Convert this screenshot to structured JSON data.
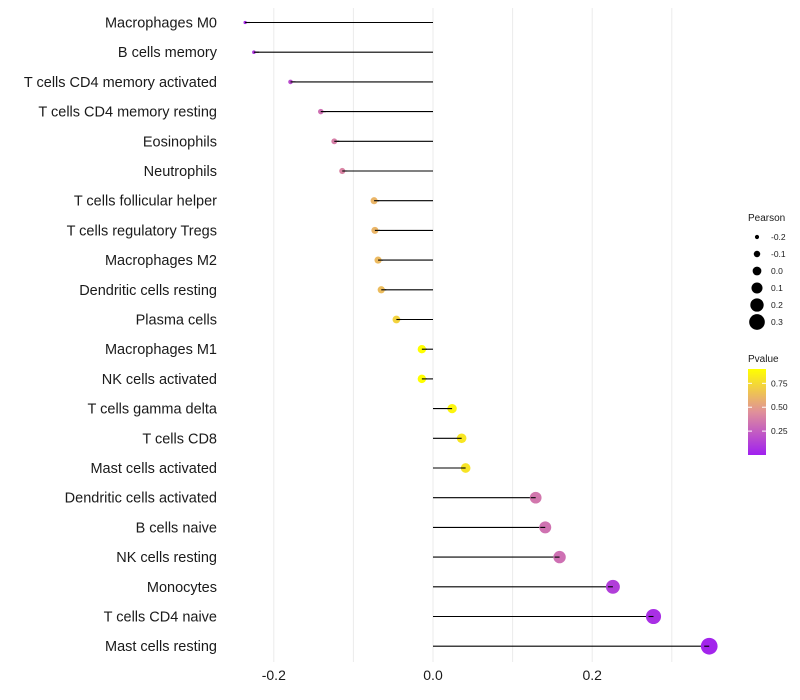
{
  "chart_data": {
    "type": "lollipop",
    "categories": [
      "Macrophages M0",
      "B cells memory",
      "T cells CD4 memory activated",
      "T cells CD4 memory resting",
      "Eosinophils",
      "Neutrophils",
      "T cells follicular helper",
      "T cells regulatory  Tregs ",
      "Macrophages M2",
      "Dendritic cells resting",
      "Plasma cells",
      "Macrophages M1",
      "NK cells activated",
      "T cells gamma delta",
      "T cells CD8",
      "Mast cells activated",
      "Dendritic cells activated",
      "B cells naive",
      "NK cells resting",
      "Monocytes",
      "T cells CD4 naive",
      "Mast cells resting"
    ],
    "pearson": [
      -0.236,
      -0.225,
      -0.179,
      -0.141,
      -0.124,
      -0.114,
      -0.074,
      -0.073,
      -0.069,
      -0.065,
      -0.046,
      -0.014,
      -0.014,
      0.024,
      0.036,
      0.041,
      0.129,
      0.141,
      0.159,
      0.226,
      0.277,
      0.347
    ],
    "pvalue": [
      0.05,
      0.1,
      0.18,
      0.32,
      0.38,
      0.4,
      0.6,
      0.6,
      0.62,
      0.63,
      0.72,
      0.9,
      0.9,
      0.86,
      0.8,
      0.79,
      0.35,
      0.33,
      0.32,
      0.12,
      0.06,
      0.02
    ],
    "xlim": [
      -0.235,
      0.35
    ],
    "xticks": [
      -0.2,
      0.0,
      0.2
    ],
    "xtick_labels": [
      "-0.2",
      "0.0",
      "0.2"
    ],
    "title": "",
    "xlabel": "",
    "ylabel": "",
    "grid": true,
    "legend": {
      "size": {
        "title": "Pearson",
        "values": [
          -0.2,
          -0.1,
          0.0,
          0.1,
          0.2,
          0.3
        ],
        "labels": [
          "-0.2",
          "-0.1",
          "0.0",
          "0.1",
          "0.2",
          "0.3"
        ]
      },
      "color": {
        "title": "Pvalue",
        "values": [
          0.75,
          0.5,
          0.25
        ],
        "labels": [
          "0.75",
          "0.50",
          "0.25"
        ],
        "range": [
          0.0,
          0.9
        ],
        "low_color": "#a020f0",
        "high_color": "#ffff00"
      },
      "placement": "right"
    },
    "colors": {
      "segment": "#000000",
      "grid": "#ebebeb"
    }
  }
}
